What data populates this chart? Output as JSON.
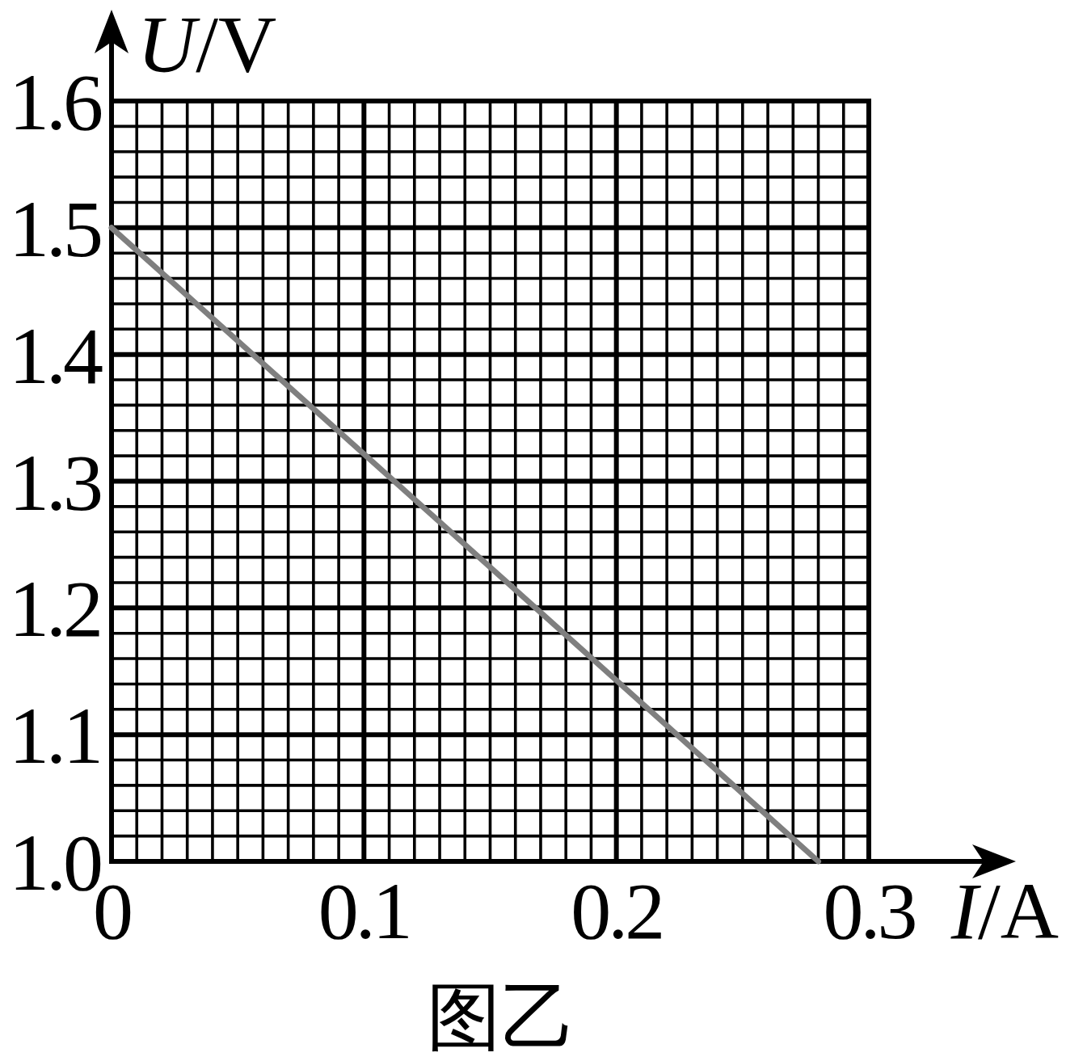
{
  "chart_data": {
    "type": "line",
    "xlabel": "I/A",
    "ylabel": "U/V",
    "annotations": [
      "图乙"
    ],
    "x": [
      0,
      0.28
    ],
    "series": [
      {
        "color": "#7f7f7f",
        "values": [
          1.5,
          1.0
        ]
      }
    ],
    "xlim": [
      0,
      0.3
    ],
    "ylim": [
      1.0,
      1.6
    ],
    "xticks": [
      0,
      {
        "value": 0.01,
        "label": null
      },
      {
        "value": 0.02,
        "label": null
      },
      {
        "value": 0.03,
        "label": null
      },
      {
        "value": 0.04,
        "label": null
      },
      {
        "value": 0.05,
        "label": null
      },
      {
        "value": 0.06,
        "label": null
      },
      {
        "value": 0.07,
        "label": null
      },
      {
        "value": 0.08,
        "label": null
      },
      {
        "value": 0.09,
        "label": null
      },
      0.1,
      {
        "value": 0.11,
        "label": null
      },
      {
        "value": 0.12,
        "label": null
      },
      {
        "value": 0.13,
        "label": null
      },
      {
        "value": 0.14,
        "label": null
      },
      {
        "value": 0.15,
        "label": null
      },
      {
        "value": 0.16,
        "label": null
      },
      {
        "value": 0.17,
        "label": null
      },
      {
        "value": 0.18,
        "label": null
      },
      {
        "value": 0.19,
        "label": null
      },
      0.2,
      {
        "value": 0.21,
        "label": null
      },
      {
        "value": 0.22,
        "label": null
      },
      {
        "value": 0.23,
        "label": null
      },
      {
        "value": 0.24,
        "label": null
      },
      {
        "value": 0.25,
        "label": null
      },
      {
        "value": 0.26,
        "label": null
      },
      {
        "value": 0.27,
        "label": null
      },
      {
        "value": 0.28,
        "label": null
      },
      {
        "value": 0.29,
        "label": null
      },
      0.3
    ],
    "yticks": [
      {
        "value": 1.0,
        "label": "1.0"
      },
      {
        "value": 1.02,
        "label": null
      },
      {
        "value": 1.04,
        "label": null
      },
      {
        "value": 1.06,
        "label": null
      },
      {
        "value": 1.08,
        "label": null
      },
      1.1,
      {
        "value": 1.12,
        "label": null
      },
      {
        "value": 1.14,
        "label": null
      },
      {
        "value": 1.16,
        "label": null
      },
      {
        "value": 1.18,
        "label": null
      },
      1.2,
      {
        "value": 1.22,
        "label": null
      },
      {
        "value": 1.24,
        "label": null
      },
      {
        "value": 1.26,
        "label": null
      },
      {
        "value": 1.28,
        "label": null
      },
      1.3,
      {
        "value": 1.32,
        "label": null
      },
      {
        "value": 1.34,
        "label": null
      },
      {
        "value": 1.36,
        "label": null
      },
      {
        "value": 1.38,
        "label": null
      },
      1.4,
      {
        "value": 1.42,
        "label": null
      },
      {
        "value": 1.44,
        "label": null
      },
      {
        "value": 1.46,
        "label": null
      },
      {
        "value": 1.48,
        "label": null
      },
      1.5,
      {
        "value": 1.52,
        "label": null
      },
      {
        "value": 1.54,
        "label": null
      },
      {
        "value": 1.56,
        "label": null
      },
      {
        "value": 1.58,
        "label": null
      },
      1.6
    ],
    "grid": true
  }
}
